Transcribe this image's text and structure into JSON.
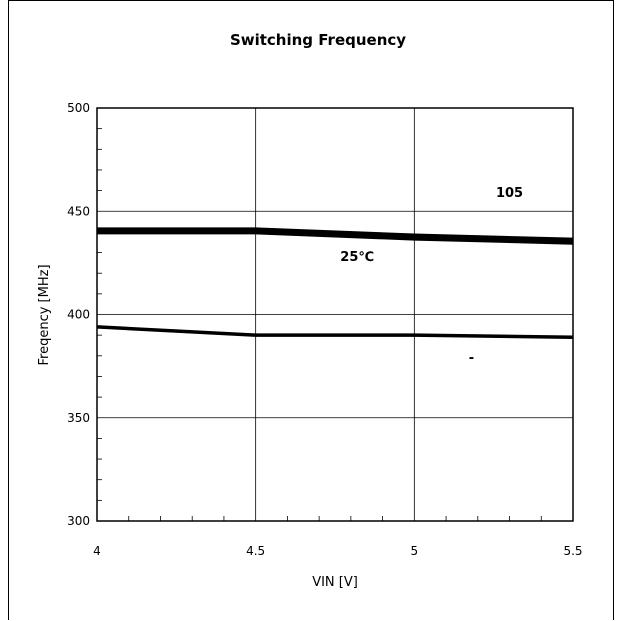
{
  "chart_data": {
    "type": "line",
    "title": "Switching Frequency",
    "xlabel": "VIN [V]",
    "ylabel": "Freqency [MHz]",
    "x": [
      4,
      4.5,
      5,
      5.5
    ],
    "xlim": [
      4,
      5.5
    ],
    "ylim": [
      300,
      500
    ],
    "x_ticks": [
      4,
      4.5,
      5,
      5.5
    ],
    "x_tick_labels": [
      "4",
      "4.5",
      "5",
      "5.5"
    ],
    "y_ticks": [
      300,
      350,
      400,
      450,
      500
    ],
    "y_tick_labels": [
      "300",
      "350",
      "400",
      "450",
      "500"
    ],
    "grid": true,
    "series": [
      {
        "name": "105",
        "values": [
          441,
          441,
          438,
          436
        ],
        "color": "#000000"
      },
      {
        "name": "25℃",
        "values": [
          440,
          440,
          437,
          435
        ],
        "color": "#000000"
      },
      {
        "name": "-",
        "values": [
          394,
          390,
          390,
          389
        ],
        "color": "#000000"
      }
    ]
  }
}
